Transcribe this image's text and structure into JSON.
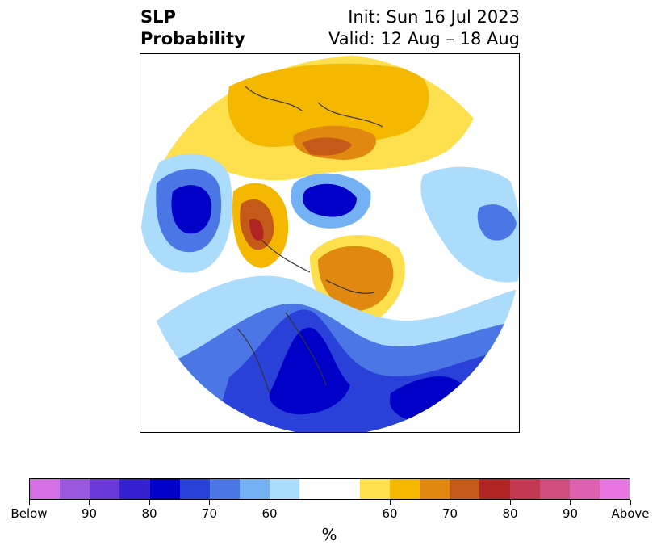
{
  "title": {
    "left_line1": "SLP",
    "left_line2": "Probability",
    "right_line1": "Init: Sun 16 Jul 2023",
    "right_line2": "Valid: 12 Aug – 18 Aug"
  },
  "colorbar": {
    "unit": "%",
    "colors": [
      "#d66fe5",
      "#9a58de",
      "#6a38d6",
      "#3520d0",
      "#0000c8",
      "#2a41d9",
      "#4b76e6",
      "#74b1f4",
      "#acdcfb",
      "#ffffff",
      "#ffffff",
      "#fee04e",
      "#f5b800",
      "#e08810",
      "#c55a18",
      "#b02424",
      "#c33850",
      "#d04e7e",
      "#de60b0",
      "#e876e0"
    ],
    "tick_labels": [
      "Below",
      "90",
      "80",
      "70",
      "60",
      "60",
      "70",
      "80",
      "90",
      "Above"
    ]
  },
  "map": {
    "projection": "north polar stereographic",
    "variable": "sea level pressure tercile probability"
  }
}
